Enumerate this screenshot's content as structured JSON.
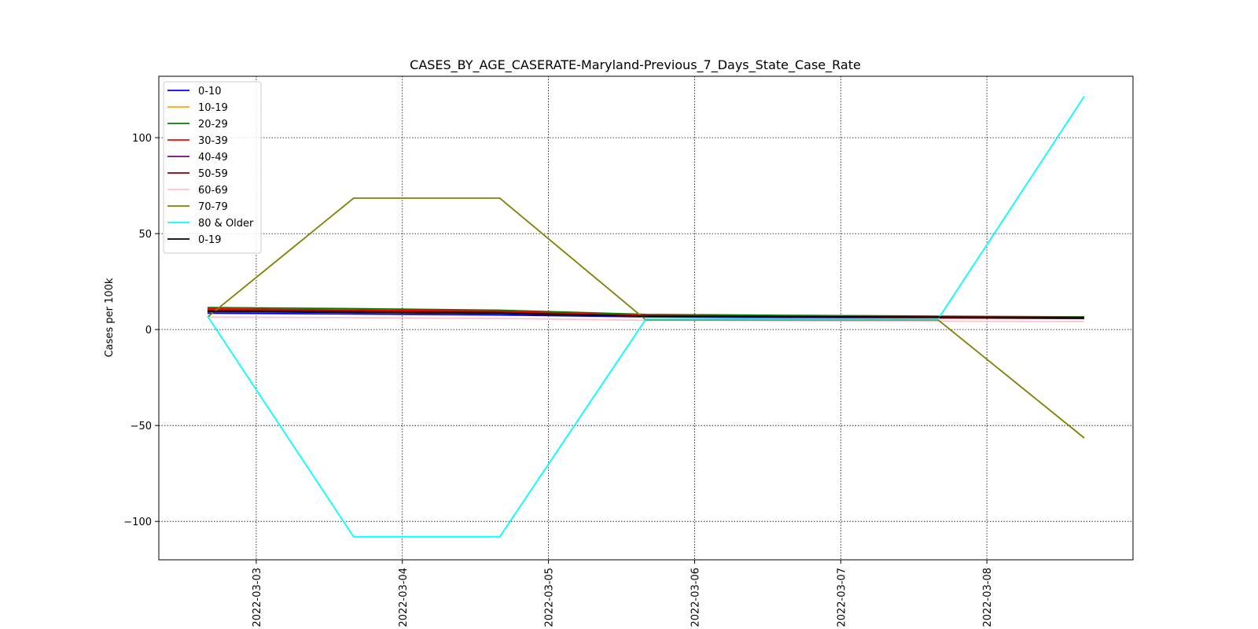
{
  "chart_data": {
    "type": "line",
    "title": "CASES_BY_AGE_CASERATE-Maryland-Previous_7_Days_State_Case_Rate",
    "xlabel": "",
    "ylabel": "Cases per 100k",
    "x": [
      "2022-03-02T16:00",
      "2022-03-03T16:00",
      "2022-03-04T16:00",
      "2022-03-05T16:00",
      "2022-03-06T16:00",
      "2022-03-07T16:00",
      "2022-03-08T16:00"
    ],
    "xlim": [
      "2022-03-02T08:00",
      "2022-03-09T00:00"
    ],
    "ylim": [
      -120,
      132
    ],
    "x_ticks": [
      "2022-03-03",
      "2022-03-04",
      "2022-03-05",
      "2022-03-06",
      "2022-03-07",
      "2022-03-08"
    ],
    "y_ticks": [
      -100,
      -50,
      0,
      50,
      100
    ],
    "grid": true,
    "legend_position": "top-left",
    "series": [
      {
        "name": "0-10",
        "color": "#0000ff",
        "values": [
          8.5,
          8.1,
          7.6,
          6.6,
          6.3,
          6.1,
          5.7
        ]
      },
      {
        "name": "10-19",
        "color": "#ffa500",
        "values": [
          10.5,
          10.0,
          9.5,
          7.5,
          7.1,
          6.8,
          6.5
        ]
      },
      {
        "name": "20-29",
        "color": "#008000",
        "values": [
          11.5,
          10.9,
          10.1,
          7.9,
          7.4,
          7.0,
          6.6
        ]
      },
      {
        "name": "30-39",
        "color": "#ff0000",
        "values": [
          10.8,
          10.2,
          9.6,
          7.3,
          6.9,
          6.6,
          6.3
        ]
      },
      {
        "name": "40-49",
        "color": "#800080",
        "values": [
          9.5,
          9.0,
          8.4,
          6.8,
          6.4,
          6.1,
          5.9
        ]
      },
      {
        "name": "50-59",
        "color": "#8b0000",
        "values": [
          10.0,
          9.6,
          9.0,
          6.9,
          6.6,
          6.3,
          6.0
        ]
      },
      {
        "name": "60-69",
        "color": "#ffc0cb",
        "values": [
          6.5,
          6.2,
          5.8,
          4.8,
          4.6,
          4.4,
          4.2
        ]
      },
      {
        "name": "70-79",
        "color": "#808000",
        "values": [
          6.5,
          68.5,
          68.5,
          5.0,
          5.0,
          5.0,
          -56.5
        ]
      },
      {
        "name": "80 & Older",
        "color": "#00ffff",
        "values": [
          7.0,
          -108.0,
          -108.0,
          5.5,
          5.5,
          5.5,
          121.5
        ]
      },
      {
        "name": "0-19",
        "color": "#000000",
        "values": [
          9.3,
          8.9,
          8.4,
          7.0,
          6.7,
          6.5,
          6.2
        ]
      }
    ]
  }
}
